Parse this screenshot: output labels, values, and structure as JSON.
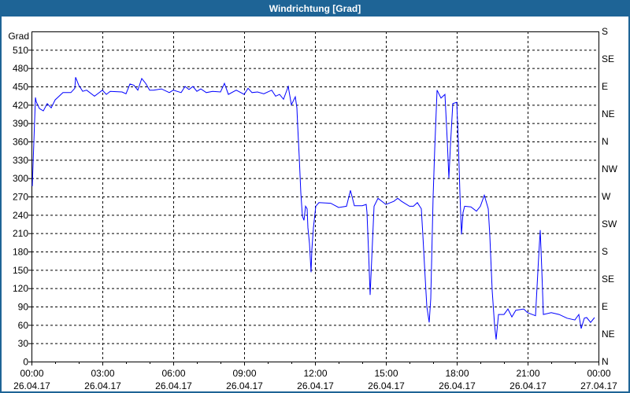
{
  "window": {
    "title": "Windrichtung [Grad]"
  },
  "chart_data": {
    "type": "line",
    "title": "Windrichtung [Grad]",
    "ylabel": "Grad",
    "ylim": [
      0,
      540
    ],
    "yticks": [
      0,
      30,
      60,
      90,
      120,
      150,
      180,
      210,
      240,
      270,
      300,
      330,
      360,
      390,
      420,
      450,
      480,
      510
    ],
    "ytick_labels_shown": [
      "0",
      "30",
      "60",
      "90",
      "120",
      "150",
      "180",
      "210",
      "240",
      "270",
      "300",
      "330",
      "360",
      "390",
      "420",
      "450",
      "480",
      "510"
    ],
    "right_axis_labels": [
      {
        "value": 540,
        "label": "S"
      },
      {
        "value": 495,
        "label": "SE"
      },
      {
        "value": 450,
        "label": "E"
      },
      {
        "value": 405,
        "label": "NE"
      },
      {
        "value": 360,
        "label": "N"
      },
      {
        "value": 315,
        "label": "NW"
      },
      {
        "value": 270,
        "label": "W"
      },
      {
        "value": 225,
        "label": "SW"
      },
      {
        "value": 180,
        "label": "S"
      },
      {
        "value": 135,
        "label": "SE"
      },
      {
        "value": 90,
        "label": "E"
      },
      {
        "value": 45,
        "label": "NE"
      },
      {
        "value": 0,
        "label": "N"
      }
    ],
    "xlim": [
      "26.04.17 00:00",
      "27.04.17 00:00"
    ],
    "xticks": [
      {
        "time": "00:00",
        "date": "26.04.17"
      },
      {
        "time": "03:00",
        "date": "26.04.17"
      },
      {
        "time": "06:00",
        "date": "26.04.17"
      },
      {
        "time": "09:00",
        "date": "26.04.17"
      },
      {
        "time": "12:00",
        "date": "26.04.17"
      },
      {
        "time": "15:00",
        "date": "26.04.17"
      },
      {
        "time": "18:00",
        "date": "26.04.17"
      },
      {
        "time": "21:00",
        "date": "26.04.17"
      },
      {
        "time": "00:00",
        "date": "27.04.17"
      }
    ],
    "grid": true,
    "line_color": "#0000ff",
    "series": [
      {
        "x": [
          "00:02",
          "00:10",
          "00:12",
          "00:20",
          "00:30",
          "00:40",
          "00:50",
          "01:00",
          "01:20",
          "01:40",
          "01:50",
          "01:52",
          "02:00",
          "02:10",
          "02:20",
          "02:40",
          "03:00",
          "03:10",
          "03:20",
          "03:50",
          "04:00",
          "04:10",
          "04:20",
          "04:30",
          "04:40",
          "04:50",
          "05:00",
          "05:10",
          "05:30",
          "05:50",
          "06:00",
          "06:20",
          "06:30",
          "06:40",
          "06:50",
          "07:00",
          "07:10",
          "07:24",
          "07:40",
          "08:00",
          "08:10",
          "08:20",
          "08:40",
          "09:00",
          "09:10",
          "09:20",
          "09:34",
          "09:50",
          "10:10",
          "10:20",
          "10:30",
          "10:40",
          "10:52",
          "11:00",
          "11:10",
          "11:14",
          "11:16",
          "11:20",
          "11:24",
          "11:28",
          "11:32",
          "11:36",
          "11:40",
          "11:42",
          "11:46",
          "11:50",
          "11:52",
          "11:56",
          "12:02",
          "12:10",
          "12:40",
          "13:00",
          "13:20",
          "13:30",
          "13:40",
          "14:00",
          "14:10",
          "14:12",
          "14:16",
          "14:20",
          "14:24",
          "14:30",
          "14:40",
          "15:00",
          "15:20",
          "15:30",
          "15:40",
          "16:00",
          "16:10",
          "16:20",
          "16:30",
          "16:34",
          "16:40",
          "16:44",
          "16:50",
          "16:54",
          "17:00",
          "17:04",
          "17:10",
          "17:20",
          "17:30",
          "17:36",
          "17:40",
          "17:44",
          "17:50",
          "18:00",
          "18:04",
          "18:08",
          "18:12",
          "18:16",
          "18:20",
          "18:36",
          "18:50",
          "19:00",
          "19:10",
          "19:20",
          "19:24",
          "19:30",
          "19:36",
          "19:40",
          "19:46",
          "20:00",
          "20:10",
          "20:20",
          "20:30",
          "20:50",
          "21:00",
          "21:20",
          "21:28",
          "21:32",
          "21:36",
          "21:40",
          "22:00",
          "22:20",
          "22:40",
          "23:00",
          "23:10",
          "23:16",
          "23:24",
          "23:30",
          "23:40",
          "23:50"
        ],
        "y": [
          287,
          432,
          425,
          414,
          410,
          422,
          415,
          428,
          440,
          440,
          447,
          465,
          452,
          442,
          444,
          434,
          444,
          437,
          442,
          441,
          438,
          454,
          452,
          444,
          463,
          455,
          444,
          444,
          446,
          440,
          444,
          440,
          450,
          445,
          450,
          442,
          446,
          440,
          442,
          441,
          455,
          437,
          444,
          437,
          447,
          440,
          441,
          438,
          444,
          434,
          437,
          429,
          450,
          420,
          433,
          415,
          386,
          334,
          276,
          238,
          231,
          254,
          250,
          219,
          193,
          146,
          183,
          219,
          254,
          260,
          259,
          252,
          254,
          280,
          255,
          255,
          257,
          244,
          180,
          109,
          167,
          254,
          267,
          257,
          262,
          267,
          262,
          254,
          254,
          260,
          250,
          206,
          135,
          90,
          64,
          103,
          270,
          347,
          444,
          431,
          437,
          360,
          300,
          354,
          422,
          424,
          360,
          276,
          208,
          244,
          254,
          253,
          246,
          254,
          272,
          250,
          206,
          116,
          60,
          36,
          77,
          77,
          86,
          73,
          84,
          86,
          80,
          75,
          171,
          215,
          150,
          77,
          80,
          77,
          71,
          68,
          77,
          54,
          71,
          72,
          64,
          72
        ]
      }
    ]
  }
}
